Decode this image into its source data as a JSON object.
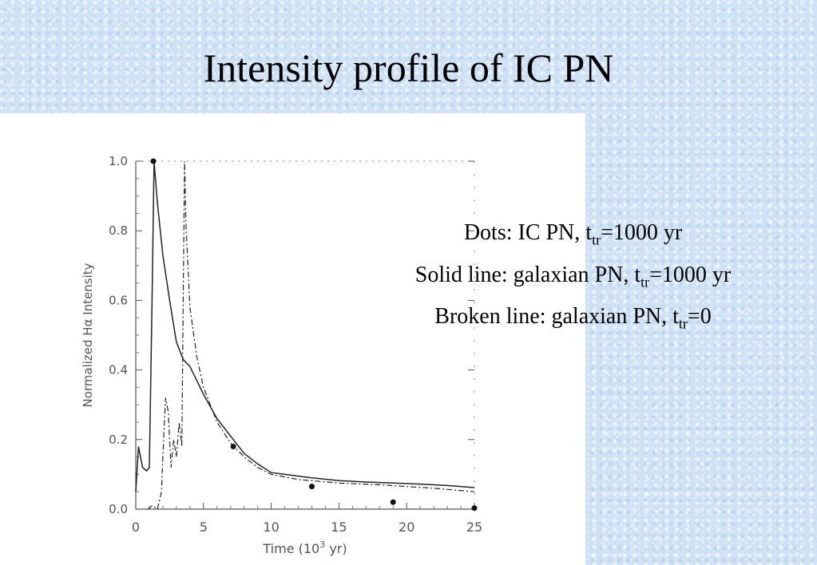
{
  "slide": {
    "title": "Intensity profile of IC PN"
  },
  "legend": {
    "dots": {
      "prefix": "Dots: IC PN, t",
      "sub": "tr",
      "suffix": "=1000 yr"
    },
    "solid": {
      "prefix": "Solid line: galaxian PN, t",
      "sub": "tr",
      "suffix": "=1000 yr"
    },
    "broken": {
      "prefix": "Broken line: galaxian PN, t",
      "sub": "tr",
      "suffix": "=0"
    }
  },
  "chart_data": {
    "type": "line",
    "xlabel_main": "Time (10",
    "xlabel_sup": "3",
    "xlabel_end": " yr)",
    "ylabel": "Normalized Hα Intensity",
    "xlim": [
      0,
      25
    ],
    "ylim": [
      0,
      1.0
    ],
    "x_ticks": [
      0,
      5,
      10,
      15,
      20,
      25
    ],
    "x_tick_labels": [
      "0",
      "5",
      "10",
      "15",
      "20",
      "25"
    ],
    "y_ticks": [
      0,
      0.2,
      0.4,
      0.6,
      0.8,
      1.0
    ],
    "y_tick_labels": [
      "0.0",
      "0.2",
      "0.4",
      "0.6",
      "0.8",
      "1.0"
    ],
    "grid": false,
    "series": [
      {
        "style": "dots",
        "x": [
          1.3,
          7.2,
          13,
          19,
          25
        ],
        "y": [
          1.0,
          0.18,
          0.065,
          0.02,
          0.003
        ]
      },
      {
        "style": "solid",
        "x": [
          0,
          0.2,
          0.5,
          0.8,
          1.0,
          1.2,
          1.35,
          1.6,
          2.0,
          2.5,
          3.0,
          3.5,
          4.0,
          4.5,
          5.0,
          6.0,
          7.0,
          8.0,
          9.0,
          10.0,
          11.0,
          13.0,
          15.0,
          17.0,
          19.0,
          21.0,
          23.0,
          25.0
        ],
        "y": [
          0.05,
          0.18,
          0.12,
          0.11,
          0.12,
          0.6,
          1.0,
          0.88,
          0.73,
          0.6,
          0.48,
          0.43,
          0.41,
          0.37,
          0.33,
          0.26,
          0.21,
          0.16,
          0.13,
          0.105,
          0.1,
          0.09,
          0.082,
          0.078,
          0.075,
          0.072,
          0.068,
          0.062
        ]
      },
      {
        "style": "broken",
        "x": [
          0.9,
          1.2,
          1.6,
          1.9,
          2.0,
          2.2,
          2.4,
          2.6,
          2.8,
          3.0,
          3.2,
          3.4,
          3.5,
          3.6,
          3.7,
          4.0,
          4.5,
          5.0,
          6.0,
          7.0,
          8.0,
          9.0,
          10.0,
          12.0,
          15.0,
          18.0,
          20.0,
          22.0,
          25.0
        ],
        "y": [
          0.0,
          0.01,
          0.0,
          0.05,
          0.15,
          0.32,
          0.28,
          0.12,
          0.2,
          0.15,
          0.25,
          0.18,
          0.6,
          1.0,
          0.82,
          0.58,
          0.44,
          0.35,
          0.25,
          0.19,
          0.15,
          0.12,
          0.1,
          0.085,
          0.075,
          0.07,
          0.065,
          0.06,
          0.05
        ]
      }
    ]
  }
}
